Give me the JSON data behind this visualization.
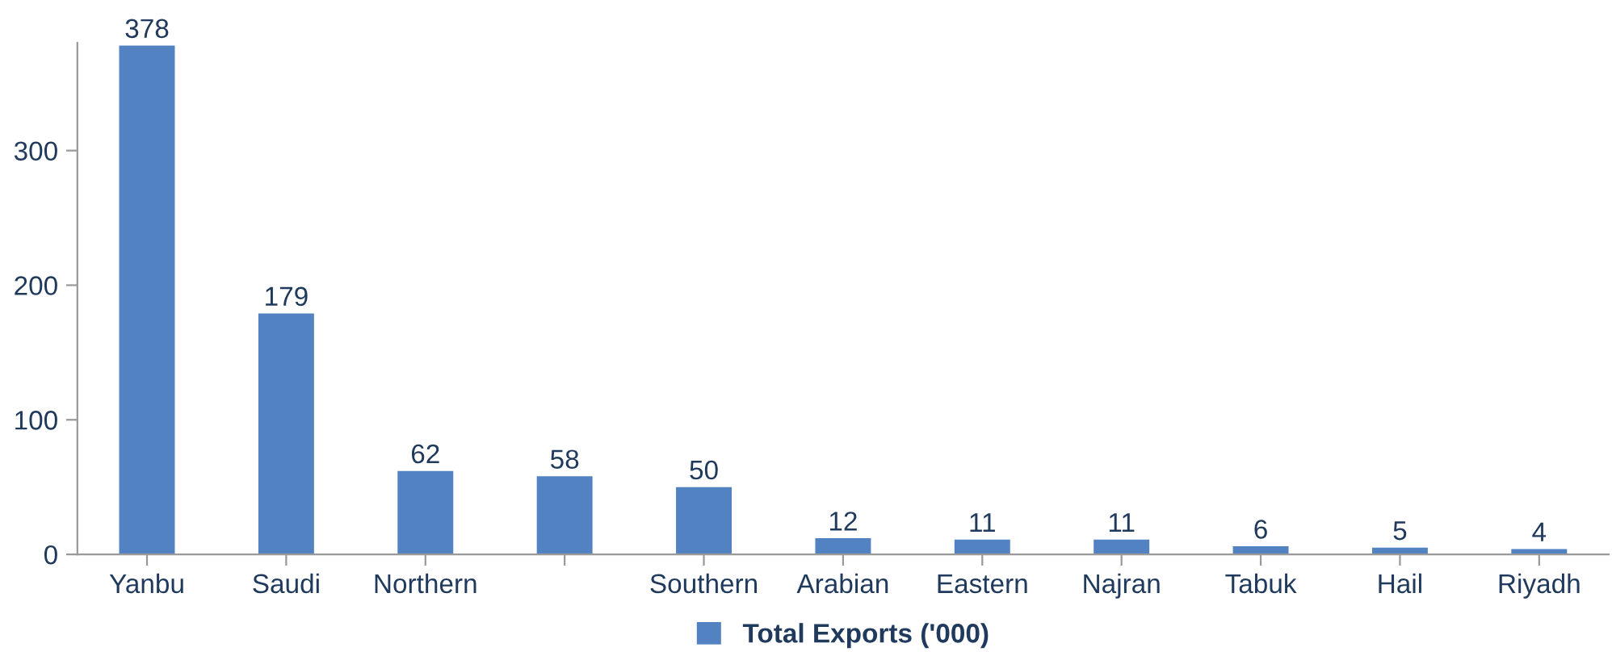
{
  "chart_data": {
    "type": "bar",
    "categories": [
      "Yanbu",
      "Saudi",
      "Northern",
      null,
      "Southern",
      "Arabian",
      "Eastern",
      "Najran",
      "Tabuk",
      "Hail",
      "Riyadh"
    ],
    "series": [
      {
        "name": "Total Exports ('000)",
        "color": "#5282c2",
        "values": [
          378,
          179,
          62,
          58,
          50,
          12,
          11,
          11,
          6,
          5,
          4
        ]
      }
    ],
    "ylim": [
      0,
      380
    ],
    "yticks": [
      0,
      100,
      200,
      300
    ],
    "grid": false,
    "legend": "bottom",
    "data_labels": true
  }
}
